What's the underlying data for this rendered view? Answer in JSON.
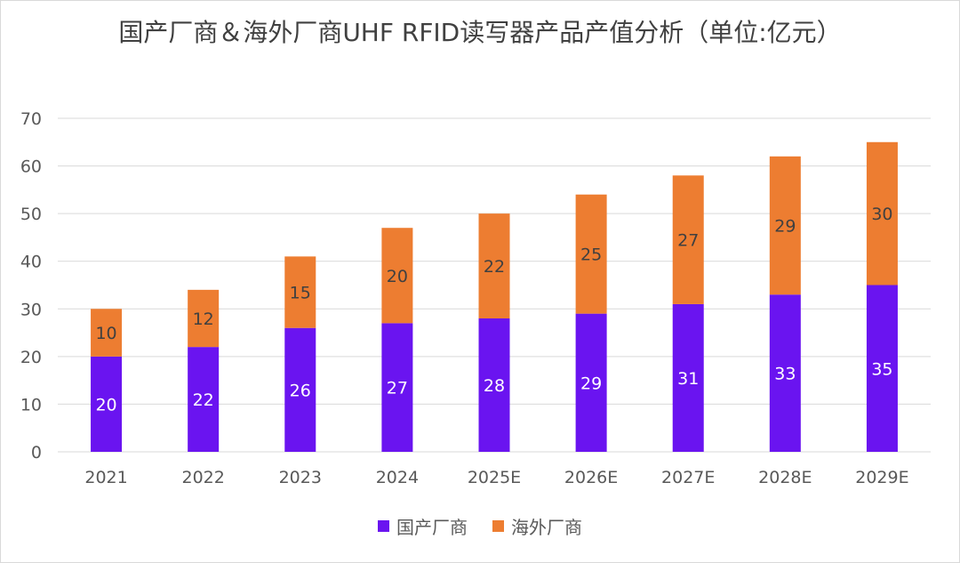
{
  "chart_data": {
    "type": "bar",
    "stacked": true,
    "title": "国产厂商＆海外厂商UHF RFID读写器产品产值分析（单位:亿元）",
    "categories": [
      "2021",
      "2022",
      "2023",
      "2024",
      "2025E",
      "2026E",
      "2027E",
      "2028E",
      "2029E"
    ],
    "series": [
      {
        "name": "国产厂商",
        "color": "#6a14f0",
        "label_color": "#ffffff",
        "values": [
          20,
          22,
          26,
          27,
          28,
          29,
          31,
          33,
          35
        ]
      },
      {
        "name": "海外厂商",
        "color": "#ed7d31",
        "label_color": "#404040",
        "values": [
          10,
          12,
          15,
          20,
          22,
          25,
          27,
          29,
          30
        ]
      }
    ],
    "ylim": [
      0,
      70
    ],
    "yticks": [
      0,
      10,
      20,
      30,
      40,
      50,
      60,
      70
    ],
    "grid": true,
    "legend_position": "bottom"
  }
}
